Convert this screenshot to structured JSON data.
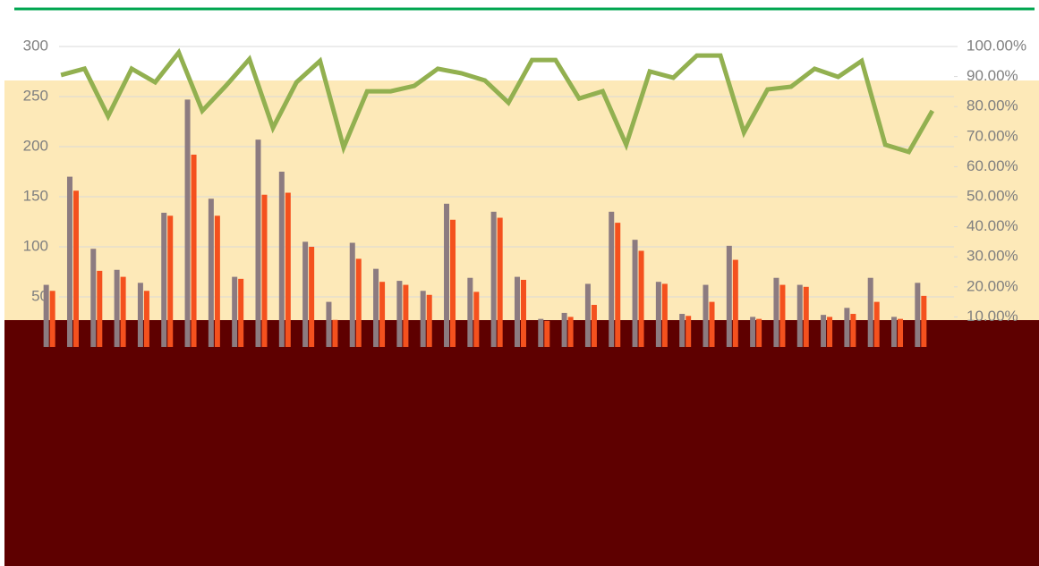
{
  "chart_data": {
    "type": "combo",
    "categories": [
      null,
      null,
      null,
      null,
      null,
      null,
      null,
      null,
      null,
      null,
      null,
      null,
      null,
      null,
      null,
      null,
      null,
      null,
      null,
      null,
      null,
      null,
      null,
      null,
      null,
      null,
      null,
      null,
      null,
      null,
      null,
      null,
      null,
      null,
      null,
      null,
      null,
      null
    ],
    "series": [
      {
        "color": "#8c7b80",
        "values": [
          62,
          170,
          98,
          77,
          64,
          134,
          247,
          148,
          70,
          207,
          175,
          105,
          45,
          104,
          78,
          66,
          56,
          143,
          69,
          135,
          70,
          28,
          34,
          63,
          135,
          107,
          65,
          33,
          62,
          101,
          30,
          69,
          62,
          32,
          39,
          69,
          30,
          64
        ]
      },
      {
        "color": "#f4511e",
        "values": [
          56,
          156,
          76,
          70,
          56,
          131,
          192,
          131,
          68,
          152,
          154,
          100,
          27,
          88,
          65,
          62,
          52,
          127,
          55,
          129,
          67,
          26,
          30,
          42,
          124,
          96,
          63,
          31,
          45,
          87,
          28,
          62,
          60,
          30,
          33,
          45,
          28,
          51
        ]
      },
      {
        "color": "#92b050",
        "axis": "y2",
        "values": [
          90.5,
          92.6,
          76.8,
          92.6,
          88.1,
          98,
          78.6,
          86.9,
          95.8,
          72.9,
          88.1,
          95.2,
          66.4,
          85.1,
          85.1,
          86.9,
          92.6,
          91.1,
          88.7,
          81.3,
          95.5,
          95.5,
          82.7,
          85.1,
          67.3,
          91.7,
          89.6,
          97,
          97,
          71.4,
          85.7,
          86.6,
          92.6,
          89.9,
          95.2,
          67.3,
          64.9,
          78.6
        ]
      }
    ],
    "ylim": [
      0,
      300
    ],
    "yticks": [
      50,
      100,
      150,
      200,
      250,
      300
    ],
    "y2lim": [
      0,
      100
    ],
    "y2ticks": [
      {
        "value": 10,
        "label": "10.00%"
      },
      {
        "value": 20,
        "label": "20.00%"
      },
      {
        "value": 30,
        "label": "30.00%"
      },
      {
        "value": 40,
        "label": "40.00%"
      },
      {
        "value": 50,
        "label": "50.00%"
      },
      {
        "value": 60,
        "label": "60.00%"
      },
      {
        "value": 70,
        "label": "70.00%"
      },
      {
        "value": 80,
        "label": "80.00%"
      },
      {
        "value": 90,
        "label": "90.00%"
      },
      {
        "value": 100,
        "label": "100.00%"
      }
    ],
    "grid": true
  }
}
